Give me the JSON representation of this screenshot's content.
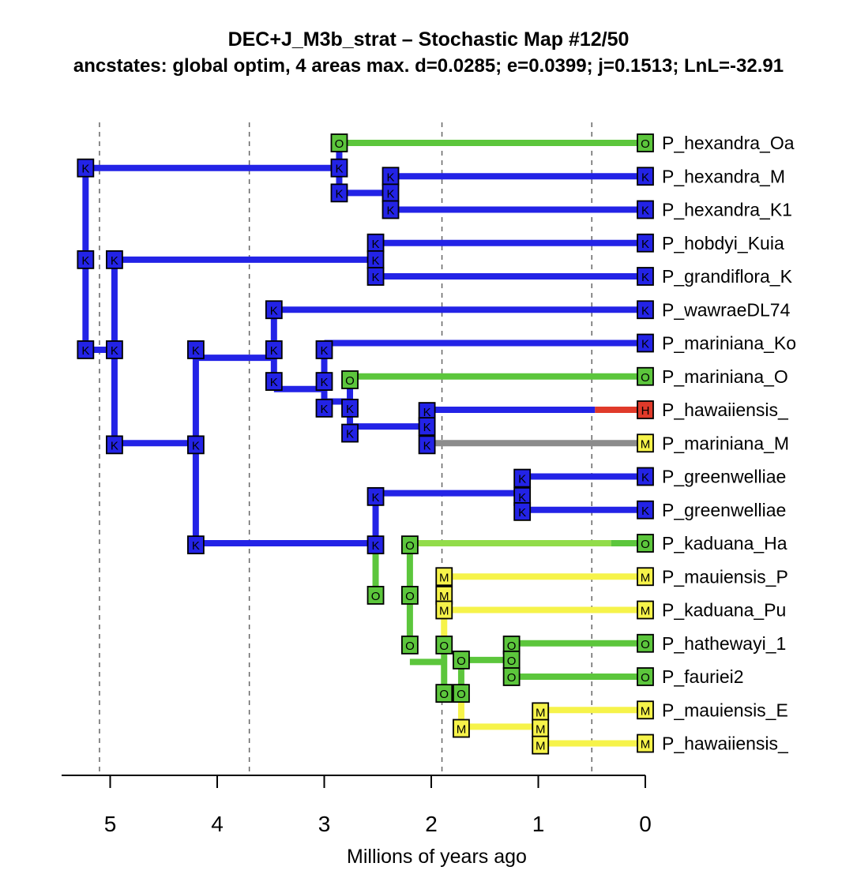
{
  "title": "DEC+J_M3b_strat – Stochastic Map #12/50",
  "subtitle": "ancstates: global optim, 4 areas max. d=0.0285; e=0.0399; j=0.1513; LnL=-32.91",
  "x_axis": {
    "label": "Millions of years ago",
    "range_mya": [
      5.5,
      0
    ],
    "ticks": [
      5,
      4,
      3,
      2,
      1,
      0
    ],
    "tick_labels": [
      "5",
      "4",
      "3",
      "2",
      "1",
      "0"
    ],
    "time_stratum_boundaries_mya": [
      5.1,
      3.7,
      1.9,
      0.5
    ]
  },
  "area_colors": {
    "K": "#2323e6",
    "O": "#5cc63c",
    "M": "#f6f34a",
    "H": "#e03a2a",
    "null": "#8c8c8c",
    "O_light": "#92dc4a"
  },
  "tips": [
    {
      "label": "P_hexandra_Oa",
      "state": "O"
    },
    {
      "label": "P_hexandra_M",
      "state": "K"
    },
    {
      "label": "P_hexandra_K1",
      "state": "K"
    },
    {
      "label": "P_hobdyi_Kuia",
      "state": "K"
    },
    {
      "label": "P_grandiflora_K",
      "state": "K"
    },
    {
      "label": "P_wawraeDL74",
      "state": "K"
    },
    {
      "label": "P_mariniana_Ko",
      "state": "K"
    },
    {
      "label": "P_mariniana_O",
      "state": "O"
    },
    {
      "label": "P_hawaiiensis_",
      "state": "H"
    },
    {
      "label": "P_mariniana_M",
      "state": "M"
    },
    {
      "label": "P_greenwelliae",
      "state": "K"
    },
    {
      "label": "P_greenwelliae",
      "state": "K"
    },
    {
      "label": "P_kaduana_Ha",
      "state": "O"
    },
    {
      "label": "P_mauiensis_P",
      "state": "M"
    },
    {
      "label": "P_kaduana_Pu",
      "state": "M"
    },
    {
      "label": "P_hathewayi_1",
      "state": "O"
    },
    {
      "label": "P_fauriei2",
      "state": "O"
    },
    {
      "label": "P_mauiensis_E",
      "state": "M"
    },
    {
      "label": "P_hawaiiensis_",
      "state": "M"
    }
  ],
  "horizontal_branches": [
    {
      "tip": 0,
      "from_mya": 2.86,
      "to_mya": 0,
      "colors": [
        "O"
      ]
    },
    {
      "tip": 1,
      "from_mya": 2.38,
      "to_mya": 0,
      "colors": [
        "K"
      ]
    },
    {
      "tip": 2,
      "from_mya": 2.38,
      "to_mya": 0,
      "colors": [
        "K"
      ]
    },
    {
      "tip": 3,
      "from_mya": 2.52,
      "to_mya": 0,
      "colors": [
        "K"
      ]
    },
    {
      "tip": 4,
      "from_mya": 2.52,
      "to_mya": 0,
      "colors": [
        "K"
      ]
    },
    {
      "tip": 5,
      "from_mya": 3.47,
      "to_mya": 0,
      "colors": [
        "K"
      ]
    },
    {
      "tip": 6,
      "from_mya": 3.0,
      "to_mya": 0,
      "colors": [
        "K"
      ]
    },
    {
      "tip": 7,
      "from_mya": 2.76,
      "to_mya": 0,
      "colors": [
        "O"
      ]
    },
    {
      "tip": 8,
      "from_mya": 2.04,
      "to_mya": 0,
      "colors": [
        "K",
        "H"
      ],
      "change_mya": 0.47
    },
    {
      "tip": 9,
      "from_mya": 2.04,
      "to_mya": 0,
      "colors": [
        "null"
      ]
    },
    {
      "tip": 10,
      "from_mya": 1.15,
      "to_mya": 0,
      "colors": [
        "K"
      ]
    },
    {
      "tip": 11,
      "from_mya": 1.15,
      "to_mya": 0,
      "colors": [
        "K"
      ]
    },
    {
      "tip": 12,
      "from_mya": 2.2,
      "to_mya": 0,
      "colors": [
        "O_light",
        "O"
      ],
      "change_mya": 0.32
    },
    {
      "tip": 13,
      "from_mya": 1.88,
      "to_mya": 0,
      "colors": [
        "M"
      ]
    },
    {
      "tip": 14,
      "from_mya": 1.88,
      "to_mya": 0,
      "colors": [
        "M"
      ]
    },
    {
      "tip": 15,
      "from_mya": 1.25,
      "to_mya": 0,
      "colors": [
        "O"
      ]
    },
    {
      "tip": 16,
      "from_mya": 1.25,
      "to_mya": 0,
      "colors": [
        "O"
      ]
    },
    {
      "tip": 17,
      "from_mya": 0.98,
      "to_mya": 0,
      "colors": [
        "M"
      ]
    },
    {
      "tip": 18,
      "from_mya": 0.98,
      "to_mya": 0,
      "colors": [
        "M"
      ]
    }
  ],
  "internal_branches": [
    {
      "y_tip": 0.75,
      "from_mya": 5.23,
      "to_mya": 2.86,
      "color": "K",
      "child_state": "K",
      "parent_state": "K"
    },
    {
      "y_tip": 1.5,
      "from_mya": 2.86,
      "to_mya": 2.38,
      "color": "K",
      "child_state": "K",
      "parent_state": "K"
    },
    {
      "y_tip": 3.5,
      "from_mya": 4.96,
      "to_mya": 2.52,
      "color": "K",
      "child_state": "K",
      "parent_state": "K"
    },
    {
      "y_tip": 6.44,
      "from_mya": 4.2,
      "to_mya": 3.47,
      "color": "K",
      "child_state": "K",
      "parent_state": "K"
    },
    {
      "y_tip": 7.38,
      "from_mya": 3.47,
      "to_mya": 3.0,
      "color": "K",
      "child_state": "K",
      "parent_state": "K"
    },
    {
      "y_tip": 7.75,
      "from_mya": 3.0,
      "to_mya": 2.76,
      "color": "K",
      "child_state": "K",
      "parent_state": "K"
    },
    {
      "y_tip": 8.5,
      "from_mya": 2.76,
      "to_mya": 2.04,
      "color": "K",
      "child_state": "K",
      "parent_state": "K"
    },
    {
      "y_tip": 6.2,
      "from_mya": 5.23,
      "to_mya": 4.96,
      "color": "K",
      "child_state": "K",
      "parent_state": "K"
    },
    {
      "y_tip": 9.0,
      "from_mya": 4.96,
      "to_mya": 4.2,
      "color": "K",
      "child_state": "K",
      "parent_state": "K"
    },
    {
      "y_tip": 12.0,
      "from_mya": 4.2,
      "to_mya": 2.52,
      "color": "K",
      "child_state": "K",
      "parent_state": "K"
    },
    {
      "y_tip": 10.5,
      "from_mya": 2.52,
      "to_mya": 1.15,
      "color": "K",
      "child_state": "K",
      "parent_state": "K"
    },
    {
      "y_tip": 15.56,
      "from_mya": 2.2,
      "to_mya": 1.88,
      "color": "O",
      "child_state": "O",
      "parent_state": "O"
    },
    {
      "y_tip": 13.5,
      "from_mya": 1.88,
      "to_mya": 1.88,
      "color": "M",
      "child_state": "M",
      "parent_state": "M"
    },
    {
      "y_tip": 15.5,
      "from_mya": 1.72,
      "to_mya": 1.25,
      "color": "O",
      "child_state": "O",
      "parent_state": "O"
    },
    {
      "y_tip": 17.5,
      "from_mya": 1.72,
      "to_mya": 0.98,
      "color": "M",
      "child_state": "M",
      "parent_state": "M"
    }
  ],
  "vertical_connectors": [
    {
      "x_mya": 5.23,
      "y_from": 0.75,
      "y_to": 6.2,
      "color": "K"
    },
    {
      "x_mya": 4.96,
      "y_from": 3.5,
      "y_to": 9.0,
      "color": "K"
    },
    {
      "x_mya": 2.86,
      "y_from": 0,
      "y_to": 1.5,
      "color": "K"
    },
    {
      "x_mya": 2.38,
      "y_from": 1,
      "y_to": 2,
      "color": "K"
    },
    {
      "x_mya": 2.52,
      "y_from": 3,
      "y_to": 4,
      "color": "K"
    },
    {
      "x_mya": 4.2,
      "y_from": 6.2,
      "y_to": 12.0,
      "color": "K"
    },
    {
      "x_mya": 3.47,
      "y_from": 5,
      "y_to": 7.38,
      "color": "K"
    },
    {
      "x_mya": 3.0,
      "y_from": 6,
      "y_to": 7.75,
      "color": "K"
    },
    {
      "x_mya": 2.76,
      "y_from": 7,
      "y_to": 8.5,
      "color": "K"
    },
    {
      "x_mya": 2.04,
      "y_from": 8,
      "y_to": 9,
      "color": "K"
    },
    {
      "x_mya": 2.52,
      "y_from": 10.5,
      "y_to": 12.0,
      "color": "K"
    },
    {
      "x_mya": 2.52,
      "y_from": 12.0,
      "y_to": 13.56,
      "color": "O"
    },
    {
      "x_mya": 1.15,
      "y_from": 10,
      "y_to": 11,
      "color": "K"
    },
    {
      "x_mya": 2.2,
      "y_from": 12,
      "y_to": 15.0,
      "color": "O"
    },
    {
      "x_mya": 1.88,
      "y_from": 13,
      "y_to": 14,
      "color": "M"
    },
    {
      "x_mya": 1.88,
      "y_from": 14,
      "y_to": 15.0,
      "color": "M"
    },
    {
      "x_mya": 1.88,
      "y_from": 15.0,
      "y_to": 16.5,
      "color": "O"
    },
    {
      "x_mya": 1.72,
      "y_from": 15.5,
      "y_to": 16.5,
      "color": "O"
    },
    {
      "x_mya": 1.72,
      "y_from": 16.5,
      "y_to": 17.5,
      "color": "M"
    },
    {
      "x_mya": 1.25,
      "y_from": 15,
      "y_to": 16,
      "color": "O"
    },
    {
      "x_mya": 0.98,
      "y_from": 17,
      "y_to": 18,
      "color": "M"
    }
  ],
  "state_boxes": [
    {
      "mya": 2.86,
      "y": 0,
      "state": "O"
    },
    {
      "mya": 5.23,
      "y": 0.75,
      "state": "K"
    },
    {
      "mya": 2.86,
      "y": 0.75,
      "state": "K"
    },
    {
      "mya": 2.86,
      "y": 1.5,
      "state": "K"
    },
    {
      "mya": 2.38,
      "y": 1,
      "state": "K"
    },
    {
      "mya": 2.38,
      "y": 1.5,
      "state": "K"
    },
    {
      "mya": 2.38,
      "y": 2,
      "state": "K"
    },
    {
      "mya": 5.23,
      "y": 3.5,
      "state": "K"
    },
    {
      "mya": 4.96,
      "y": 3.5,
      "state": "K"
    },
    {
      "mya": 2.52,
      "y": 3,
      "state": "K"
    },
    {
      "mya": 2.52,
      "y": 3.5,
      "state": "K"
    },
    {
      "mya": 2.52,
      "y": 4,
      "state": "K"
    },
    {
      "mya": 5.23,
      "y": 6.2,
      "state": "K"
    },
    {
      "mya": 4.96,
      "y": 6.2,
      "state": "K"
    },
    {
      "mya": 3.47,
      "y": 5,
      "state": "K"
    },
    {
      "mya": 4.2,
      "y": 6.2,
      "state": "K"
    },
    {
      "mya": 3.47,
      "y": 6.2,
      "state": "K"
    },
    {
      "mya": 3.0,
      "y": 6.2,
      "state": "K"
    },
    {
      "mya": 3.47,
      "y": 7.15,
      "state": "K"
    },
    {
      "mya": 3.0,
      "y": 7.15,
      "state": "K"
    },
    {
      "mya": 2.76,
      "y": 7.1,
      "state": "O"
    },
    {
      "mya": 3.0,
      "y": 7.95,
      "state": "K"
    },
    {
      "mya": 2.76,
      "y": 7.95,
      "state": "K"
    },
    {
      "mya": 2.76,
      "y": 8.7,
      "state": "K"
    },
    {
      "mya": 2.04,
      "y": 8.05,
      "state": "K"
    },
    {
      "mya": 2.04,
      "y": 8.5,
      "state": "K"
    },
    {
      "mya": 2.04,
      "y": 9.05,
      "state": "K"
    },
    {
      "mya": 4.96,
      "y": 9.05,
      "state": "K"
    },
    {
      "mya": 4.2,
      "y": 9.05,
      "state": "K"
    },
    {
      "mya": 1.15,
      "y": 10.05,
      "state": "K"
    },
    {
      "mya": 2.52,
      "y": 10.6,
      "state": "K"
    },
    {
      "mya": 1.15,
      "y": 10.6,
      "state": "K"
    },
    {
      "mya": 1.15,
      "y": 11.05,
      "state": "K"
    },
    {
      "mya": 4.2,
      "y": 12.05,
      "state": "K"
    },
    {
      "mya": 2.52,
      "y": 12.05,
      "state": "K"
    },
    {
      "mya": 2.2,
      "y": 12.05,
      "state": "O"
    },
    {
      "mya": 1.88,
      "y": 13.0,
      "state": "M"
    },
    {
      "mya": 2.52,
      "y": 13.56,
      "state": "O"
    },
    {
      "mya": 2.2,
      "y": 13.56,
      "state": "O"
    },
    {
      "mya": 1.88,
      "y": 13.56,
      "state": "M"
    },
    {
      "mya": 1.88,
      "y": 14.0,
      "state": "M"
    },
    {
      "mya": 2.2,
      "y": 15.05,
      "state": "O"
    },
    {
      "mya": 1.88,
      "y": 15.05,
      "state": "O"
    },
    {
      "mya": 1.25,
      "y": 15.05,
      "state": "O"
    },
    {
      "mya": 1.72,
      "y": 15.5,
      "state": "O"
    },
    {
      "mya": 1.25,
      "y": 15.5,
      "state": "O"
    },
    {
      "mya": 1.25,
      "y": 16.0,
      "state": "O"
    },
    {
      "mya": 1.88,
      "y": 16.5,
      "state": "O"
    },
    {
      "mya": 1.72,
      "y": 16.5,
      "state": "O"
    },
    {
      "mya": 0.98,
      "y": 17.05,
      "state": "M"
    },
    {
      "mya": 1.72,
      "y": 17.55,
      "state": "M"
    },
    {
      "mya": 0.98,
      "y": 17.55,
      "state": "M"
    },
    {
      "mya": 0.98,
      "y": 18.05,
      "state": "M"
    }
  ]
}
